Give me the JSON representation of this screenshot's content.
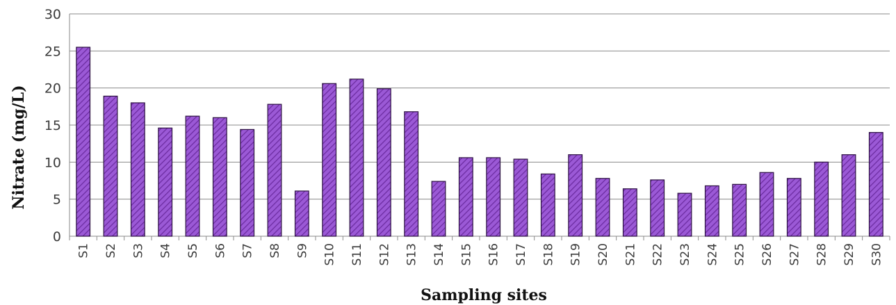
{
  "chart_data": {
    "type": "bar",
    "title": "",
    "xlabel": "Sampling sites",
    "ylabel": "Nitrate (mg/L)",
    "ylim": [
      0,
      30
    ],
    "yticks": [
      0,
      5,
      10,
      15,
      20,
      25,
      30
    ],
    "grid": true,
    "legend": "none",
    "categories": [
      "S1",
      "S2",
      "S3",
      "S4",
      "S5",
      "S6",
      "S7",
      "S8",
      "S9",
      "S10",
      "S11",
      "S12",
      "S13",
      "S14",
      "S15",
      "S16",
      "S17",
      "S18",
      "S19",
      "S20",
      "S21",
      "S22",
      "S23",
      "S24",
      "S25",
      "S26",
      "S27",
      "S28",
      "S29",
      "S30"
    ],
    "values": [
      25.5,
      18.9,
      18.0,
      14.6,
      16.2,
      16.0,
      14.4,
      17.8,
      6.1,
      20.6,
      21.2,
      19.9,
      16.8,
      7.4,
      10.6,
      10.6,
      10.4,
      8.4,
      11.0,
      7.8,
      6.4,
      7.6,
      5.8,
      6.8,
      7.0,
      8.6,
      7.8,
      10.0,
      11.0,
      14.0
    ],
    "colors": {
      "bar_fill": "#9b59d6",
      "bar_hatch": "#6a2a9e",
      "bar_edge": "#2b1140",
      "gridline": "#8a8a8a",
      "axis": "#8a8a8a"
    }
  }
}
